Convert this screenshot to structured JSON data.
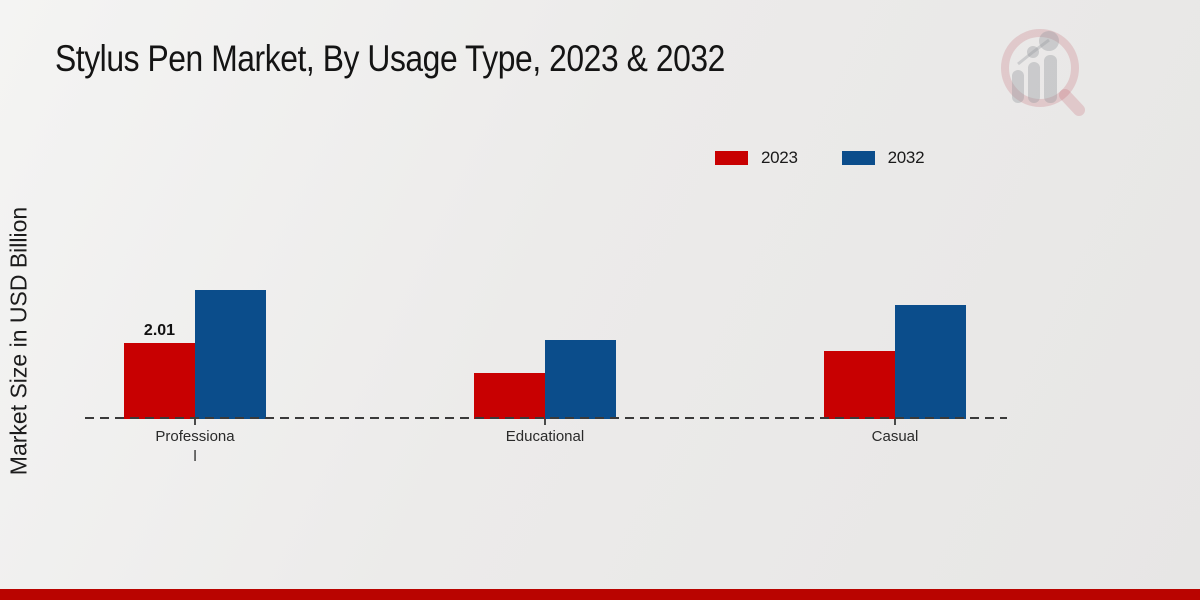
{
  "chart_data": {
    "type": "bar",
    "title": "Stylus Pen Market, By Usage Type, 2023 & 2032",
    "xlabel": "",
    "ylabel": "Market Size in USD Billion",
    "categories": [
      "Professional",
      "Educational",
      "Casual"
    ],
    "categories_display": [
      "Professiona\nl",
      "Educational",
      "Casual"
    ],
    "series": [
      {
        "name": "2023",
        "color": "#c80001",
        "values": [
          2.01,
          1.22,
          1.8
        ]
      },
      {
        "name": "2032",
        "color": "#0b4d8b",
        "values": [
          3.41,
          2.09,
          3.02
        ]
      }
    ],
    "data_labels": [
      {
        "series_index": 0,
        "category_index": 0,
        "text": "2.01"
      }
    ],
    "ylim": [
      0,
      4
    ],
    "axis": {
      "baseline_style": "dashed",
      "gridlines": false,
      "y_tick_labels_visible": false
    },
    "legend_position": "top-right",
    "note_only_labeled_value": "2.01"
  },
  "colors": {
    "accent_red": "#c80001",
    "accent_blue": "#0b4d8b",
    "footer_bar": "#b90400",
    "background": "#ecebea"
  },
  "watermark": {
    "icon": "magnifier-bar-chart-logo"
  }
}
